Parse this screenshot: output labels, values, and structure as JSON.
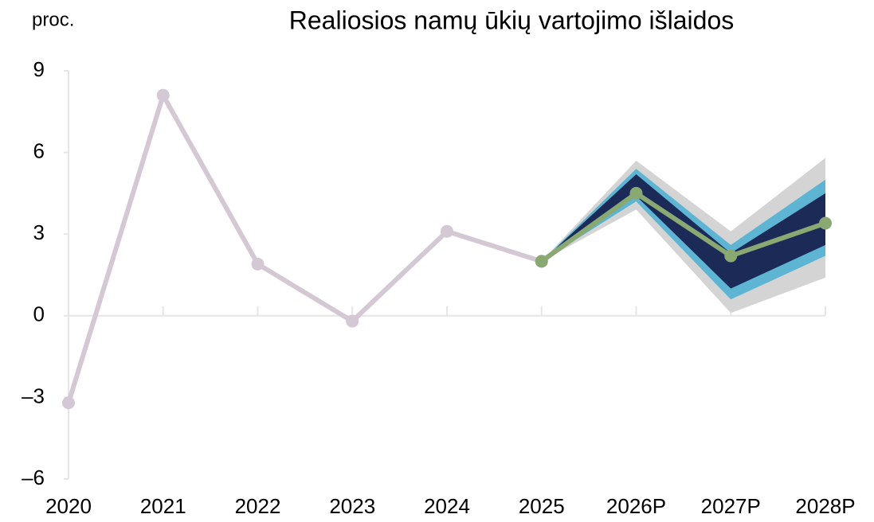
{
  "chart_data": {
    "type": "line",
    "title": "Realiosios namų ūkių vartojimo išlaidos",
    "y_label": "proc.",
    "categories": [
      "2020",
      "2021",
      "2022",
      "2023",
      "2024",
      "2025",
      "2026P",
      "2027P",
      "2028P"
    ],
    "series": [
      {
        "color": "#d3c8d4",
        "values": [
          -3.2,
          8.1,
          1.9,
          -0.2,
          3.1,
          2.0,
          null,
          null,
          null
        ]
      },
      {
        "color": "#8aa872",
        "values": [
          null,
          null,
          null,
          null,
          null,
          2.0,
          4.5,
          2.2,
          3.4
        ]
      }
    ],
    "bands": [
      {
        "color": "#d4d4d4",
        "lower": [
          null,
          null,
          null,
          null,
          null,
          2.0,
          3.9,
          0.1,
          1.4
        ],
        "upper": [
          null,
          null,
          null,
          null,
          null,
          2.0,
          5.7,
          3.1,
          5.8
        ]
      },
      {
        "color": "#5db5d3",
        "lower": [
          null,
          null,
          null,
          null,
          null,
          2.0,
          4.2,
          0.6,
          2.2
        ],
        "upper": [
          null,
          null,
          null,
          null,
          null,
          2.0,
          5.4,
          2.6,
          5.0
        ]
      },
      {
        "color": "#1b2a57",
        "lower": [
          null,
          null,
          null,
          null,
          null,
          2.0,
          4.4,
          1.0,
          2.6
        ],
        "upper": [
          null,
          null,
          null,
          null,
          null,
          2.0,
          5.2,
          2.3,
          4.5
        ]
      }
    ],
    "ylim": [
      -6,
      9
    ],
    "yticks": [
      9,
      6,
      3,
      0,
      {
        "value": -3,
        "label": "–3"
      },
      {
        "value": -6,
        "label": "–6"
      }
    ]
  }
}
